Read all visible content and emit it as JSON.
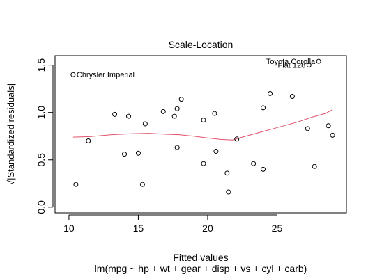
{
  "chart_data": {
    "type": "scatter",
    "title": "Scale-Location",
    "xlabel": "Fitted values",
    "subtitle": "lm(mpg ~ hp + wt + gear + disp + vs + cyl + carb)",
    "ylabel": "√|Standardized residuals|",
    "xlim": [
      9.0,
      30.0
    ],
    "ylim": [
      -0.06,
      1.6
    ],
    "x_ticks": [
      "10",
      "15",
      "20",
      "25"
    ],
    "y_ticks": [
      "0.0",
      "0.5",
      "1.0",
      "1.5"
    ],
    "grid": false,
    "points": [
      {
        "x": 10.3,
        "y": 1.4
      },
      {
        "x": 10.5,
        "y": 0.24
      },
      {
        "x": 11.4,
        "y": 0.7
      },
      {
        "x": 13.3,
        "y": 0.98
      },
      {
        "x": 14.0,
        "y": 0.56
      },
      {
        "x": 14.3,
        "y": 0.96
      },
      {
        "x": 15.0,
        "y": 0.57
      },
      {
        "x": 15.3,
        "y": 0.24
      },
      {
        "x": 15.5,
        "y": 0.88
      },
      {
        "x": 16.8,
        "y": 1.01
      },
      {
        "x": 17.6,
        "y": 0.96
      },
      {
        "x": 17.8,
        "y": 0.63
      },
      {
        "x": 17.8,
        "y": 1.04
      },
      {
        "x": 18.1,
        "y": 1.14
      },
      {
        "x": 19.7,
        "y": 0.92
      },
      {
        "x": 19.7,
        "y": 0.46
      },
      {
        "x": 20.5,
        "y": 0.99
      },
      {
        "x": 20.6,
        "y": 0.59
      },
      {
        "x": 21.4,
        "y": 0.36
      },
      {
        "x": 21.5,
        "y": 0.16
      },
      {
        "x": 22.1,
        "y": 0.72
      },
      {
        "x": 23.3,
        "y": 0.46
      },
      {
        "x": 24.0,
        "y": 1.05
      },
      {
        "x": 24.0,
        "y": 0.4
      },
      {
        "x": 24.5,
        "y": 1.2
      },
      {
        "x": 26.1,
        "y": 1.17
      },
      {
        "x": 27.2,
        "y": 0.83
      },
      {
        "x": 27.7,
        "y": 0.43
      },
      {
        "x": 28.0,
        "y": 1.54
      },
      {
        "x": 27.3,
        "y": 1.5
      },
      {
        "x": 28.7,
        "y": 0.86
      },
      {
        "x": 29.0,
        "y": 0.76
      }
    ],
    "smooth_line": {
      "color": "#DF536B",
      "x": [
        10.3,
        11.5,
        13.0,
        14.5,
        15.8,
        17.0,
        18.0,
        19.0,
        20.0,
        21.0,
        21.8,
        22.5,
        23.5,
        24.5,
        25.5,
        26.5,
        27.5,
        28.5,
        29.0
      ],
      "y": [
        0.74,
        0.745,
        0.765,
        0.775,
        0.78,
        0.77,
        0.765,
        0.75,
        0.73,
        0.715,
        0.71,
        0.74,
        0.78,
        0.82,
        0.86,
        0.9,
        0.95,
        0.99,
        1.03
      ]
    },
    "annotations": [
      {
        "text": "Chrysler Imperial",
        "x": 10.3,
        "y": 1.4,
        "side": "right"
      },
      {
        "text": "Toyota Corolla",
        "x": 28.0,
        "y": 1.54,
        "side": "left"
      },
      {
        "text": "Fiat 128",
        "x": 27.3,
        "y": 1.5,
        "side": "left"
      }
    ]
  }
}
